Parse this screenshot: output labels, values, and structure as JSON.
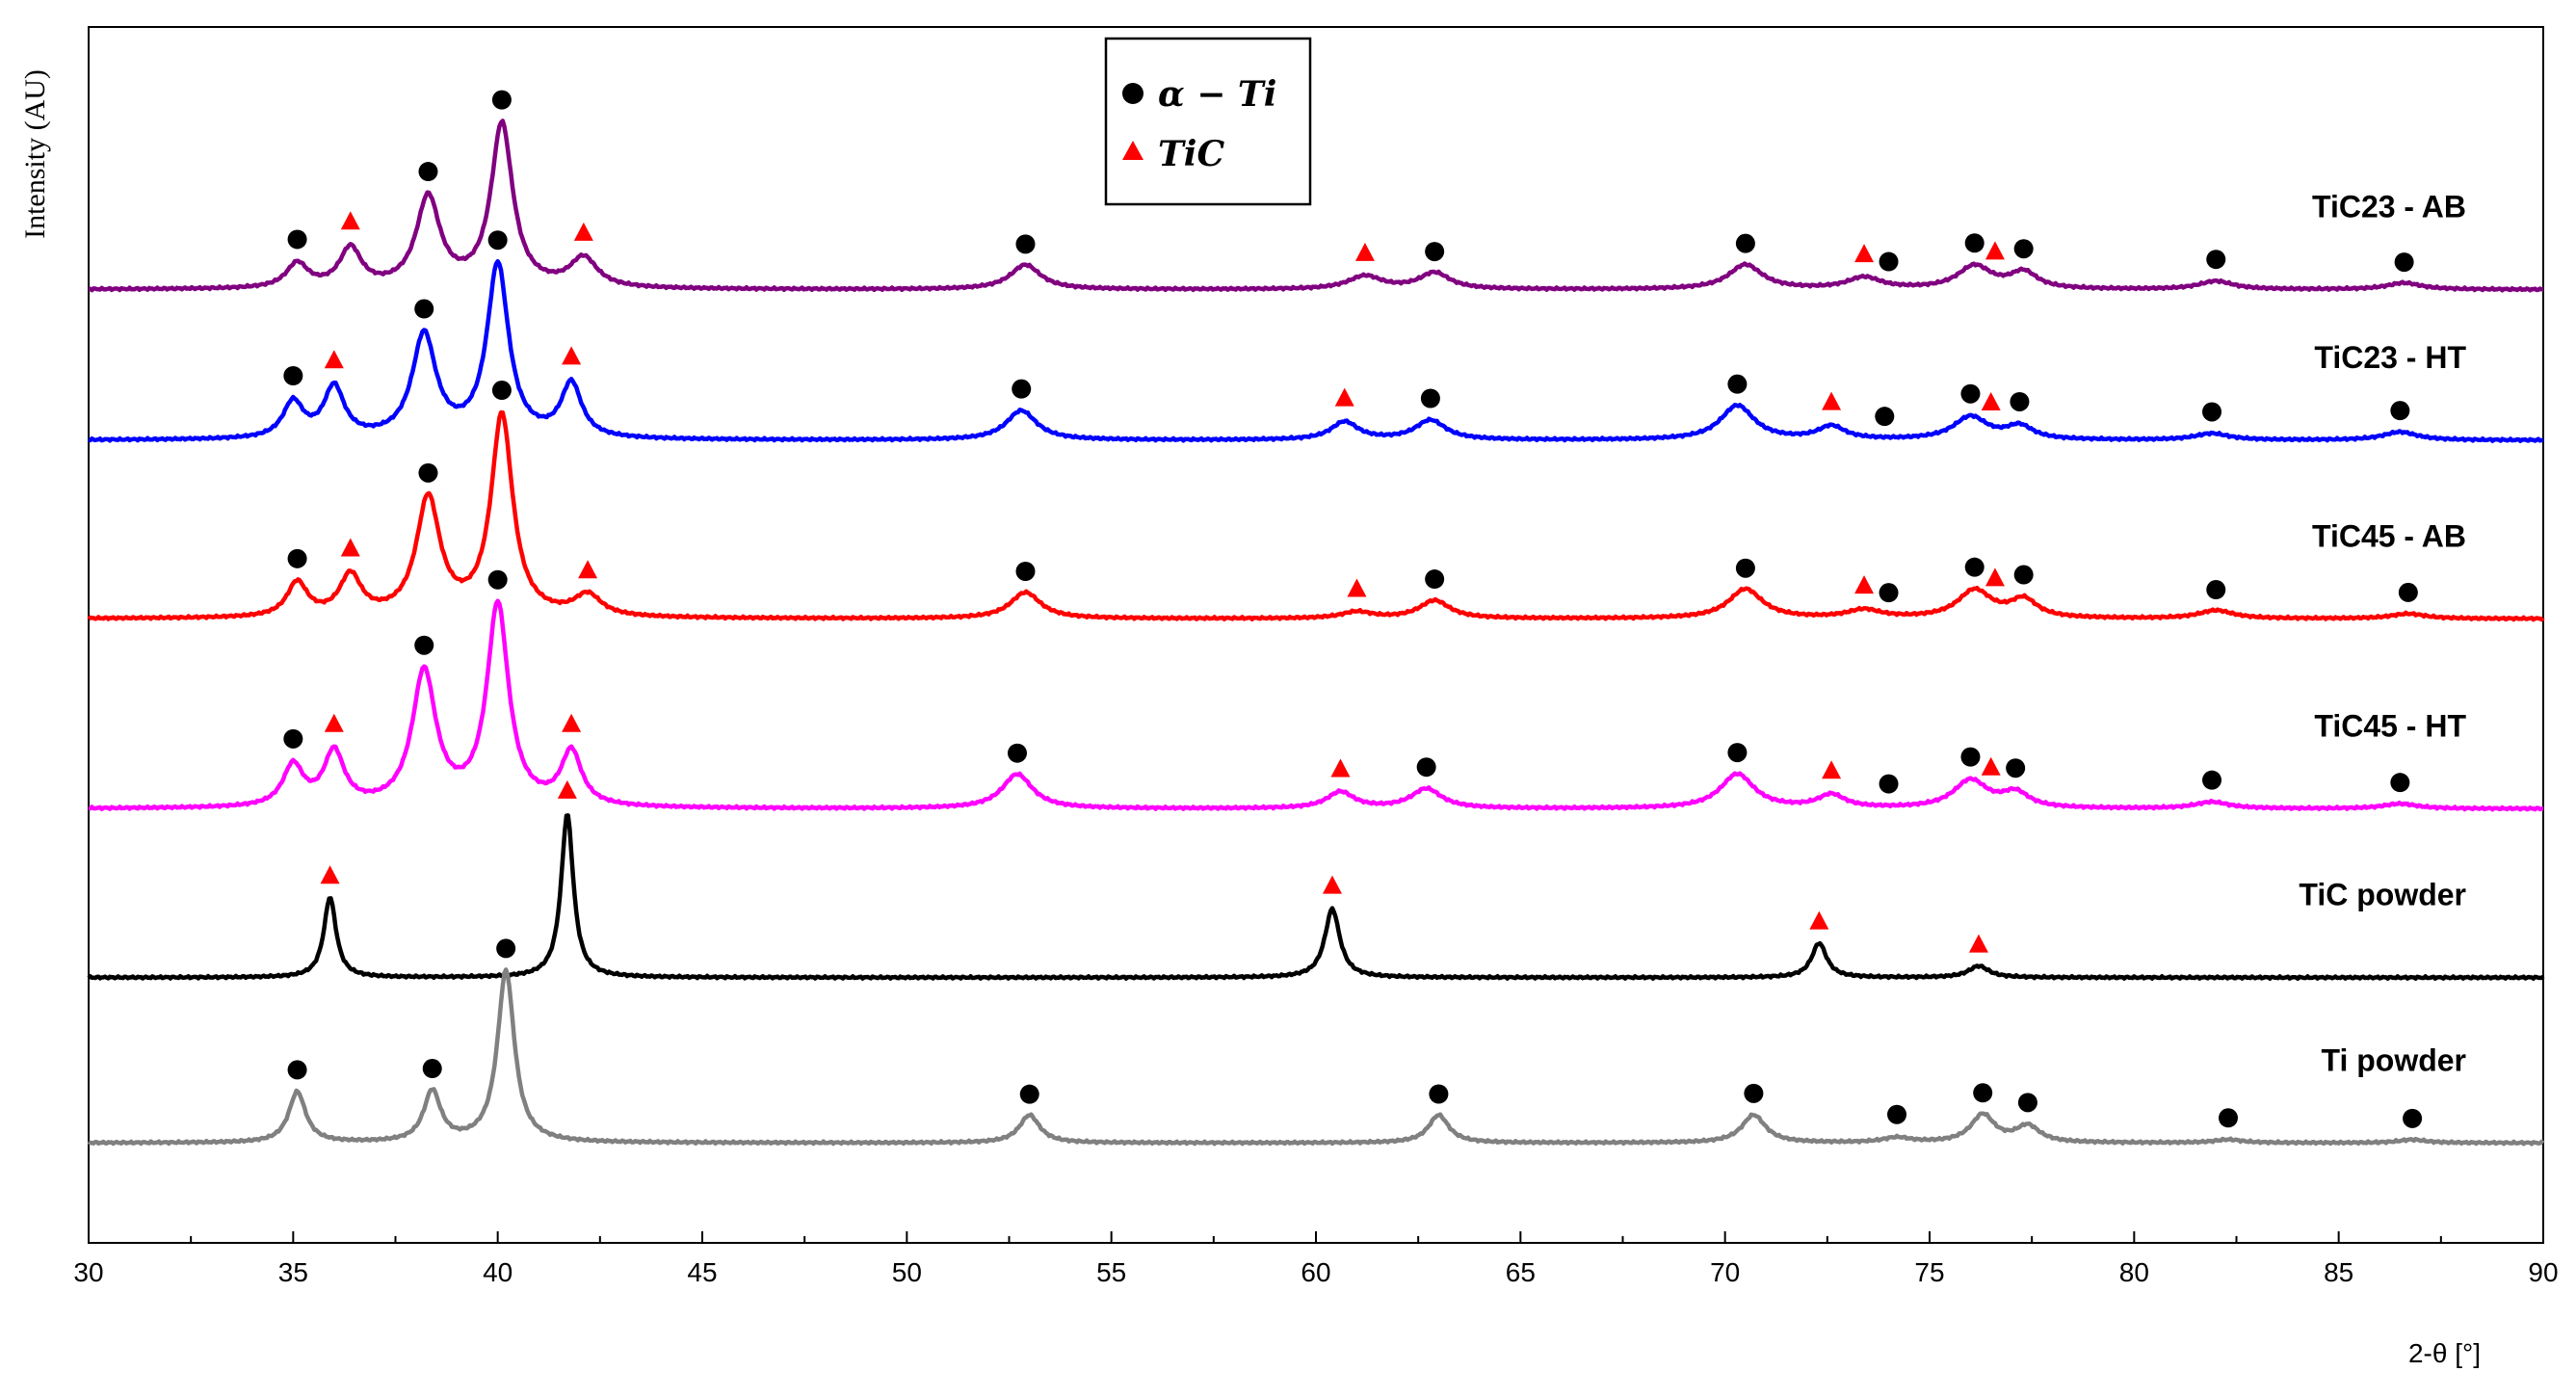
{
  "chart_data": {
    "type": "line",
    "xlabel": "2-θ [°]",
    "ylabel": "Intensity (AU)",
    "xlim": [
      30,
      90
    ],
    "xticks": [
      30,
      35,
      40,
      45,
      50,
      55,
      60,
      65,
      70,
      75,
      80,
      85,
      90
    ],
    "y_ticks_shown": false,
    "grid": false,
    "legend_placement": "top-center",
    "legend": [
      {
        "marker": "circle",
        "label": "α − Ti",
        "color": "#000000"
      },
      {
        "marker": "triangle",
        "label": "TiC",
        "color": "#ff0000"
      }
    ],
    "phase_marker_colors": {
      "alpha_ti": "#000000",
      "tic": "#ff0000"
    },
    "series": [
      {
        "name": "TiC23 - AB",
        "color": "#800080",
        "baseline": 5.82,
        "peaks": [
          [
            35.1,
            0.15,
            0.32
          ],
          [
            36.4,
            0.24,
            0.32
          ],
          [
            38.3,
            0.55,
            0.35
          ],
          [
            40.1,
            1.0,
            0.32
          ],
          [
            42.1,
            0.18,
            0.4
          ],
          [
            52.9,
            0.15,
            0.45
          ],
          [
            61.2,
            0.08,
            0.5
          ],
          [
            62.9,
            0.1,
            0.45
          ],
          [
            70.5,
            0.15,
            0.5
          ],
          [
            73.4,
            0.07,
            0.5
          ],
          [
            76.1,
            0.14,
            0.5
          ],
          [
            77.3,
            0.1,
            0.4
          ],
          [
            82.0,
            0.05,
            0.5
          ],
          [
            86.6,
            0.04,
            0.5
          ]
        ],
        "alpha_ti": [
          35.1,
          38.3,
          40.1,
          52.9,
          62.9,
          70.5,
          74.0,
          76.1,
          77.3,
          82.0,
          86.6
        ],
        "tic": [
          36.4,
          42.1,
          61.2,
          73.4,
          76.6
        ]
      },
      {
        "name": "TiC23 - HT",
        "color": "#0000ff",
        "baseline": 4.9,
        "peaks": [
          [
            35.0,
            0.22,
            0.3
          ],
          [
            36.0,
            0.31,
            0.3
          ],
          [
            38.2,
            0.63,
            0.35
          ],
          [
            40.0,
            1.06,
            0.32
          ],
          [
            41.8,
            0.33,
            0.3
          ],
          [
            52.8,
            0.18,
            0.45
          ],
          [
            60.7,
            0.11,
            0.4
          ],
          [
            62.8,
            0.12,
            0.45
          ],
          [
            70.3,
            0.21,
            0.5
          ],
          [
            72.6,
            0.08,
            0.4
          ],
          [
            76.0,
            0.14,
            0.5
          ],
          [
            77.2,
            0.08,
            0.4
          ],
          [
            81.9,
            0.04,
            0.5
          ],
          [
            86.5,
            0.05,
            0.5
          ]
        ],
        "alpha_ti": [
          35.0,
          38.2,
          40.0,
          52.8,
          62.8,
          70.3,
          73.9,
          76.0,
          77.2,
          81.9,
          86.5
        ],
        "tic": [
          36.0,
          41.8,
          60.7,
          72.6,
          76.5
        ]
      },
      {
        "name": "TiC45 - AB",
        "color": "#ff0000",
        "baseline": 3.81,
        "peaks": [
          [
            35.1,
            0.21,
            0.3
          ],
          [
            36.4,
            0.25,
            0.32
          ],
          [
            38.3,
            0.72,
            0.35
          ],
          [
            40.1,
            1.23,
            0.32
          ],
          [
            42.2,
            0.13,
            0.4
          ],
          [
            52.9,
            0.16,
            0.45
          ],
          [
            61.0,
            0.04,
            0.45
          ],
          [
            62.9,
            0.11,
            0.45
          ],
          [
            70.5,
            0.18,
            0.5
          ],
          [
            73.4,
            0.05,
            0.5
          ],
          [
            76.1,
            0.17,
            0.5
          ],
          [
            77.3,
            0.11,
            0.4
          ],
          [
            82.0,
            0.05,
            0.5
          ],
          [
            86.7,
            0.03,
            0.5
          ]
        ],
        "alpha_ti": [
          35.1,
          38.3,
          40.1,
          52.9,
          62.9,
          70.5,
          74.0,
          76.1,
          77.3,
          82.0,
          86.7
        ],
        "tic": [
          36.4,
          42.2,
          61.0,
          73.4,
          76.6
        ]
      },
      {
        "name": "TiC45 - HT",
        "color": "#ff00ff",
        "baseline": 2.65,
        "peaks": [
          [
            35.0,
            0.25,
            0.3
          ],
          [
            36.0,
            0.33,
            0.3
          ],
          [
            38.2,
            0.82,
            0.35
          ],
          [
            40.0,
            1.23,
            0.32
          ],
          [
            41.8,
            0.33,
            0.3
          ],
          [
            52.7,
            0.21,
            0.45
          ],
          [
            60.6,
            0.1,
            0.4
          ],
          [
            62.7,
            0.12,
            0.45
          ],
          [
            70.3,
            0.21,
            0.5
          ],
          [
            72.6,
            0.08,
            0.4
          ],
          [
            76.0,
            0.17,
            0.5
          ],
          [
            77.1,
            0.09,
            0.4
          ],
          [
            81.9,
            0.04,
            0.5
          ],
          [
            86.5,
            0.03,
            0.5
          ]
        ],
        "alpha_ti": [
          35.0,
          38.2,
          40.0,
          52.7,
          62.7,
          70.3,
          74.0,
          76.0,
          77.1,
          81.9,
          86.5
        ],
        "tic": [
          36.0,
          41.8,
          60.6,
          72.6,
          76.5
        ]
      },
      {
        "name": "TiC powder",
        "color": "#000000",
        "baseline": 1.62,
        "peaks": [
          [
            35.9,
            0.49,
            0.18
          ],
          [
            41.7,
            1.0,
            0.18
          ],
          [
            60.4,
            0.42,
            0.22
          ],
          [
            72.3,
            0.21,
            0.22
          ],
          [
            76.2,
            0.07,
            0.3
          ]
        ],
        "alpha_ti": [],
        "tic": [
          35.9,
          41.7,
          60.4,
          72.3,
          76.2
        ]
      },
      {
        "name": "Ti powder",
        "color": "#808080",
        "baseline": 0.61,
        "peaks": [
          [
            35.1,
            0.31,
            0.25
          ],
          [
            38.4,
            0.31,
            0.25
          ],
          [
            40.2,
            1.05,
            0.25
          ],
          [
            53.0,
            0.17,
            0.3
          ],
          [
            63.0,
            0.17,
            0.3
          ],
          [
            70.7,
            0.17,
            0.35
          ],
          [
            74.2,
            0.03,
            0.4
          ],
          [
            76.3,
            0.17,
            0.35
          ],
          [
            77.4,
            0.1,
            0.35
          ],
          [
            82.3,
            0.02,
            0.4
          ],
          [
            86.8,
            0.02,
            0.4
          ]
        ],
        "alpha_ti": [
          35.1,
          38.4,
          40.2,
          53.0,
          63.0,
          70.7,
          74.2,
          76.3,
          77.4,
          82.3,
          86.8
        ],
        "tic": []
      }
    ]
  }
}
